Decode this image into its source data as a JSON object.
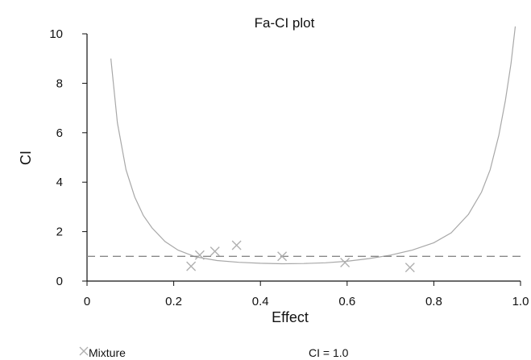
{
  "chart_data": {
    "type": "scatter",
    "title": "Fa-CI plot",
    "xlabel": "Effect",
    "ylabel": "CI",
    "xlim": [
      0,
      1.0
    ],
    "ylim": [
      0,
      10
    ],
    "x_ticks": [
      "0",
      "0.2",
      "0.4",
      "0.6",
      "0.8",
      "1.0"
    ],
    "y_ticks": [
      "0",
      "2",
      "4",
      "6",
      "8",
      "10"
    ],
    "series": [
      {
        "name": "Mixture",
        "marker": "x",
        "color": "#b0b0b0",
        "x": [
          0.24,
          0.26,
          0.295,
          0.345,
          0.45,
          0.595,
          0.745
        ],
        "y": [
          0.6,
          1.05,
          1.2,
          1.45,
          1.0,
          0.75,
          0.55
        ]
      }
    ],
    "curve": {
      "type": "line",
      "color": "#a8a8a8",
      "x": [
        0.055,
        0.07,
        0.09,
        0.11,
        0.13,
        0.15,
        0.18,
        0.21,
        0.25,
        0.3,
        0.35,
        0.4,
        0.45,
        0.5,
        0.55,
        0.6,
        0.65,
        0.7,
        0.75,
        0.8,
        0.84,
        0.88,
        0.91,
        0.93,
        0.95,
        0.965,
        0.978,
        0.988
      ],
      "y": [
        9.0,
        6.4,
        4.5,
        3.4,
        2.65,
        2.15,
        1.6,
        1.25,
        0.98,
        0.83,
        0.76,
        0.72,
        0.7,
        0.71,
        0.74,
        0.8,
        0.91,
        1.05,
        1.25,
        1.55,
        1.95,
        2.7,
        3.6,
        4.5,
        5.9,
        7.3,
        8.8,
        10.3
      ]
    },
    "reference_line": {
      "label": "CI = 1.0",
      "y": 1.0,
      "style": "dashed",
      "color": "#888888"
    },
    "legend": {
      "placement": "bottom",
      "entries": [
        "Mixture",
        "CI = 1.0"
      ]
    },
    "grid": false
  }
}
